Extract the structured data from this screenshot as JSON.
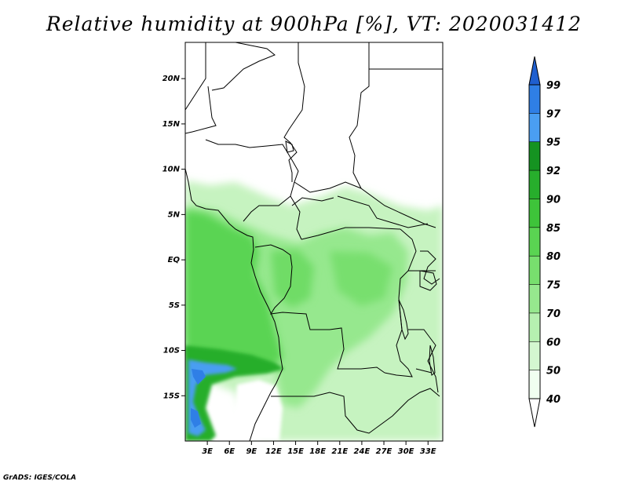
{
  "title": "Relative humidity at 900hPa [%], VT: 2020031412",
  "credit": "GrADS: IGES/COLA",
  "map": {
    "projection": "lat-lon",
    "lon_range": [
      0,
      35
    ],
    "lat_range": [
      -20,
      24
    ],
    "lat_ticks": [
      {
        "lat": 20,
        "label": "20N"
      },
      {
        "lat": 15,
        "label": "15N"
      },
      {
        "lat": 10,
        "label": "10N"
      },
      {
        "lat": 5,
        "label": "5N"
      },
      {
        "lat": 0,
        "label": "EQ"
      },
      {
        "lat": -5,
        "label": "5S"
      },
      {
        "lat": -10,
        "label": "10S"
      },
      {
        "lat": -15,
        "label": "15S"
      }
    ],
    "lon_ticks": [
      {
        "lon": 3,
        "label": "3E"
      },
      {
        "lon": 6,
        "label": "6E"
      },
      {
        "lon": 9,
        "label": "9E"
      },
      {
        "lon": 12,
        "label": "12E"
      },
      {
        "lon": 15,
        "label": "15E"
      },
      {
        "lon": 18,
        "label": "18E"
      },
      {
        "lon": 21,
        "label": "21E"
      },
      {
        "lon": 24,
        "label": "24E"
      },
      {
        "lon": 27,
        "label": "27E"
      },
      {
        "lon": 30,
        "label": "30E"
      },
      {
        "lon": 33,
        "label": "33E"
      }
    ]
  },
  "colorbar": {
    "levels": [
      {
        "label": "40",
        "color": "#f0fff0"
      },
      {
        "label": "50",
        "color": "#d4f7d0"
      },
      {
        "label": "60",
        "color": "#b6f0b0"
      },
      {
        "label": "70",
        "color": "#96e88e"
      },
      {
        "label": "75",
        "color": "#78df6e"
      },
      {
        "label": "80",
        "color": "#5ad452"
      },
      {
        "label": "85",
        "color": "#3ec43a"
      },
      {
        "label": "90",
        "color": "#27ae2c"
      },
      {
        "label": "92",
        "color": "#159321"
      },
      {
        "label": "95",
        "color": "#4a9ef2"
      },
      {
        "label": "97",
        "color": "#2f7fe6"
      },
      {
        "label": "99",
        "color": "#1f5fcf"
      }
    ]
  }
}
